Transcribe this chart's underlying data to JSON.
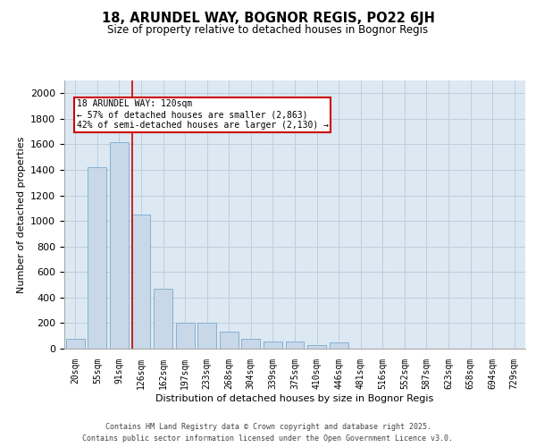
{
  "title_line1": "18, ARUNDEL WAY, BOGNOR REGIS, PO22 6JH",
  "title_line2": "Size of property relative to detached houses in Bognor Regis",
  "xlabel": "Distribution of detached houses by size in Bognor Regis",
  "ylabel": "Number of detached properties",
  "categories": [
    "20sqm",
    "55sqm",
    "91sqm",
    "126sqm",
    "162sqm",
    "197sqm",
    "233sqm",
    "268sqm",
    "304sqm",
    "339sqm",
    "375sqm",
    "410sqm",
    "446sqm",
    "481sqm",
    "516sqm",
    "552sqm",
    "587sqm",
    "623sqm",
    "658sqm",
    "694sqm",
    "729sqm"
  ],
  "values": [
    80,
    1420,
    1620,
    1050,
    470,
    200,
    200,
    130,
    75,
    55,
    55,
    30,
    50,
    0,
    0,
    0,
    0,
    0,
    0,
    0,
    0
  ],
  "bar_color": "#c8d8e8",
  "bar_edge_color": "#7aaacf",
  "grid_color": "#c0cedd",
  "bg_color": "#dce8f2",
  "vline_color": "#cc0000",
  "vline_pos": 2.58,
  "annotation_text": "18 ARUNDEL WAY: 120sqm\n← 57% of detached houses are smaller (2,863)\n42% of semi-detached houses are larger (2,130) →",
  "annotation_box_color": "#cc0000",
  "ylim": [
    0,
    2100
  ],
  "yticks": [
    0,
    200,
    400,
    600,
    800,
    1000,
    1200,
    1400,
    1600,
    1800,
    2000
  ],
  "footer_line1": "Contains HM Land Registry data © Crown copyright and database right 2025.",
  "footer_line2": "Contains public sector information licensed under the Open Government Licence v3.0."
}
